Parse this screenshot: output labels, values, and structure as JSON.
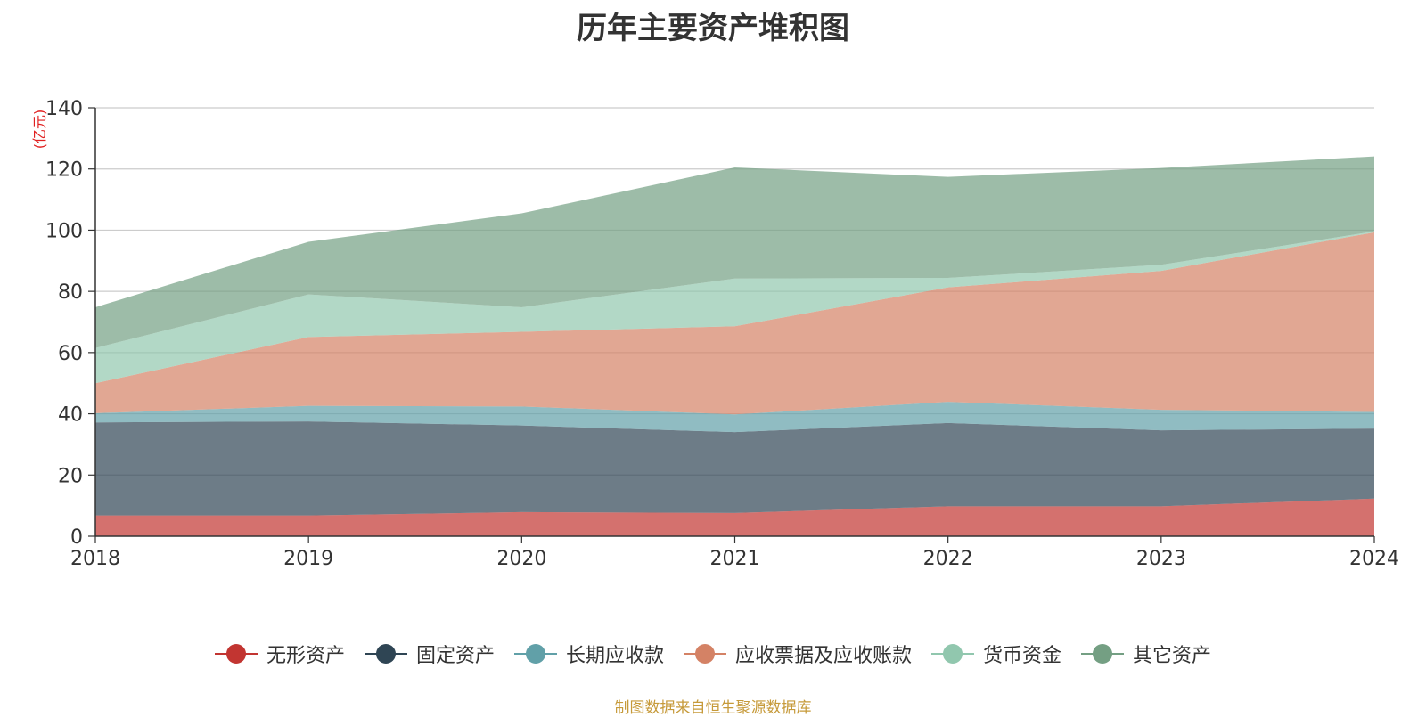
{
  "title": "历年主要资产堆积图",
  "unit_label": "(亿元)",
  "source_note": "制图数据来自恒生聚源数据库",
  "colors": {
    "intangible": "#c23531",
    "fixed": "#2f4554",
    "long_term_receivable": "#61a0a8",
    "receivables": "#d48265",
    "cash": "#91c7ae",
    "other": "#749f83"
  },
  "chart_data": {
    "type": "area",
    "stacked": true,
    "title": "历年主要资产堆积图",
    "ylabel": "(亿元)",
    "x": [
      "2018",
      "2019",
      "2020",
      "2021",
      "2022",
      "2023",
      "2024"
    ],
    "ylim": [
      0,
      140
    ],
    "yticks": [
      0,
      20,
      40,
      60,
      80,
      100,
      120,
      140
    ],
    "grid": true,
    "legend_position": "bottom",
    "series": [
      {
        "name": "无形资产",
        "color_key": "intangible",
        "values": [
          6.8,
          6.8,
          7.9,
          7.6,
          9.8,
          9.8,
          12.3
        ]
      },
      {
        "name": "固定资产",
        "color_key": "fixed",
        "values": [
          30.4,
          30.7,
          28.3,
          26.4,
          27.2,
          24.8,
          22.9
        ]
      },
      {
        "name": "长期应收款",
        "color_key": "long_term_receivable",
        "values": [
          3.0,
          5.1,
          6.2,
          5.8,
          6.9,
          6.7,
          5.4
        ]
      },
      {
        "name": "应收票据及应收账款",
        "color_key": "receivables",
        "values": [
          9.8,
          22.5,
          24.4,
          28.8,
          37.4,
          45.4,
          58.7
        ]
      },
      {
        "name": "货币资金",
        "color_key": "cash",
        "values": [
          11.5,
          13.9,
          8.0,
          15.6,
          3.1,
          2.0,
          0.3
        ]
      },
      {
        "name": "其它资产",
        "color_key": "other",
        "values": [
          13.3,
          17.2,
          30.7,
          36.3,
          33.0,
          31.6,
          24.5
        ]
      }
    ]
  }
}
